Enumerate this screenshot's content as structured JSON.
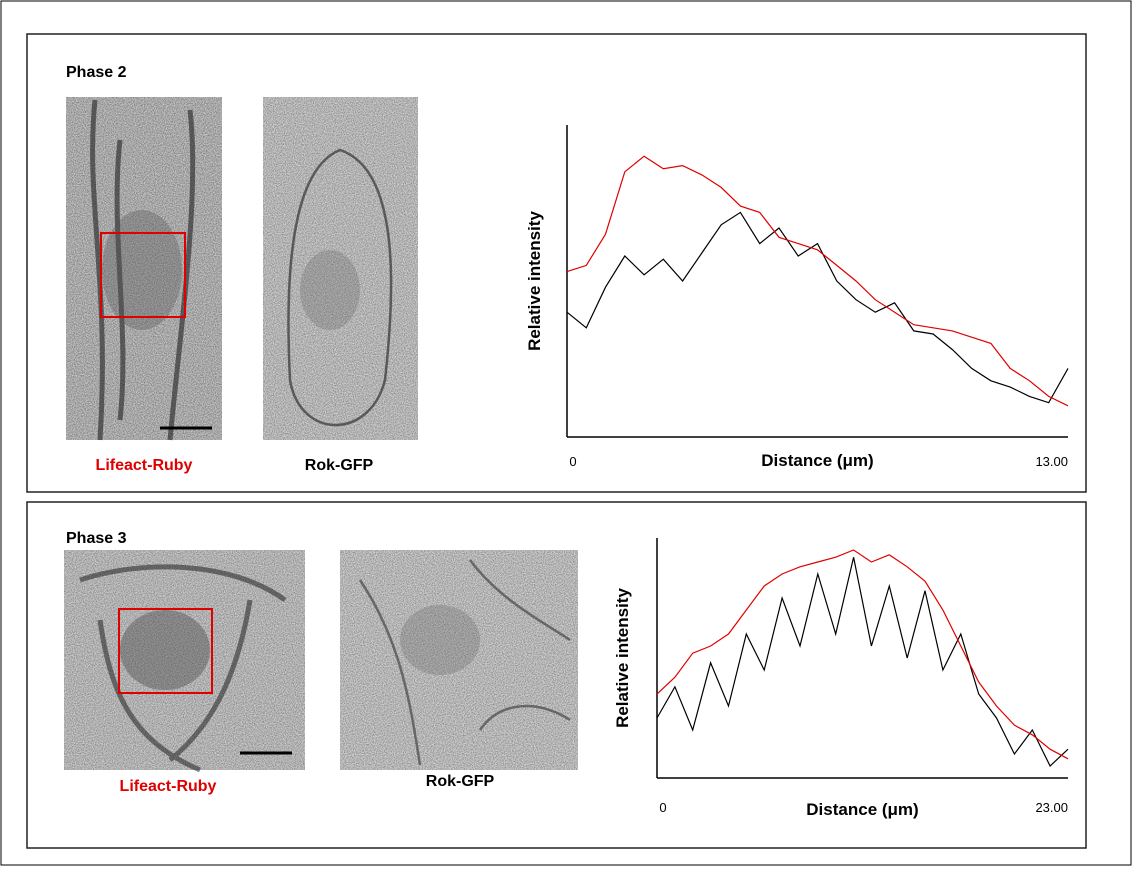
{
  "panels": [
    {
      "title": "Phase 2",
      "image_labels": [
        "Lifeact-Ruby",
        "Rok-GFP"
      ]
    },
    {
      "title": "Phase 3",
      "image_labels": [
        "Lifeact-Ruby",
        "Rok-GFP"
      ]
    }
  ],
  "chart_data": [
    {
      "type": "line",
      "ylabel": "Relative intensity",
      "xlabel": "Distance (μm)",
      "xlim": [
        0,
        13
      ],
      "xticks": [
        0,
        {
          "value": 13,
          "label": "13.00"
        }
      ],
      "ylim": [
        0,
        1
      ],
      "x": [
        0,
        0.5,
        1,
        1.5,
        2,
        2.5,
        3,
        3.5,
        4,
        4.5,
        5,
        5.5,
        6,
        6.5,
        7,
        7.5,
        8,
        8.5,
        9,
        9.5,
        10,
        10.5,
        11,
        11.5,
        12,
        12.5,
        13
      ],
      "series": [
        {
          "color": "#e00000",
          "values": [
            0.53,
            0.55,
            0.65,
            0.85,
            0.9,
            0.86,
            0.87,
            0.84,
            0.8,
            0.74,
            0.72,
            0.64,
            0.62,
            0.6,
            0.55,
            0.5,
            0.44,
            0.4,
            0.36,
            0.35,
            0.34,
            0.32,
            0.3,
            0.22,
            0.18,
            0.13,
            0.1
          ]
        },
        {
          "color": "#000000",
          "values": [
            0.4,
            0.35,
            0.48,
            0.58,
            0.52,
            0.57,
            0.5,
            0.59,
            0.68,
            0.72,
            0.62,
            0.67,
            0.58,
            0.62,
            0.5,
            0.44,
            0.4,
            0.43,
            0.34,
            0.33,
            0.28,
            0.22,
            0.18,
            0.16,
            0.13,
            0.11,
            0.22
          ]
        }
      ]
    },
    {
      "type": "line",
      "ylabel": "Relative intensity",
      "xlabel": "Distance (μm)",
      "xlim": [
        0,
        23
      ],
      "xticks": [
        0,
        {
          "value": 23,
          "label": "23.00"
        }
      ],
      "ylim": [
        0,
        1
      ],
      "x": [
        0,
        1,
        2,
        3,
        4,
        5,
        6,
        7,
        8,
        9,
        10,
        11,
        12,
        13,
        14,
        15,
        16,
        17,
        18,
        19,
        20,
        21,
        22,
        23
      ],
      "series": [
        {
          "color": "#e00000",
          "values": [
            0.35,
            0.42,
            0.52,
            0.55,
            0.6,
            0.7,
            0.8,
            0.85,
            0.88,
            0.9,
            0.92,
            0.95,
            0.9,
            0.93,
            0.88,
            0.82,
            0.7,
            0.55,
            0.4,
            0.3,
            0.22,
            0.18,
            0.12,
            0.08
          ]
        },
        {
          "color": "#000000",
          "values": [
            0.25,
            0.38,
            0.2,
            0.48,
            0.3,
            0.6,
            0.45,
            0.75,
            0.55,
            0.85,
            0.6,
            0.92,
            0.55,
            0.8,
            0.5,
            0.78,
            0.45,
            0.6,
            0.35,
            0.25,
            0.1,
            0.2,
            0.05,
            0.12
          ]
        }
      ]
    }
  ]
}
